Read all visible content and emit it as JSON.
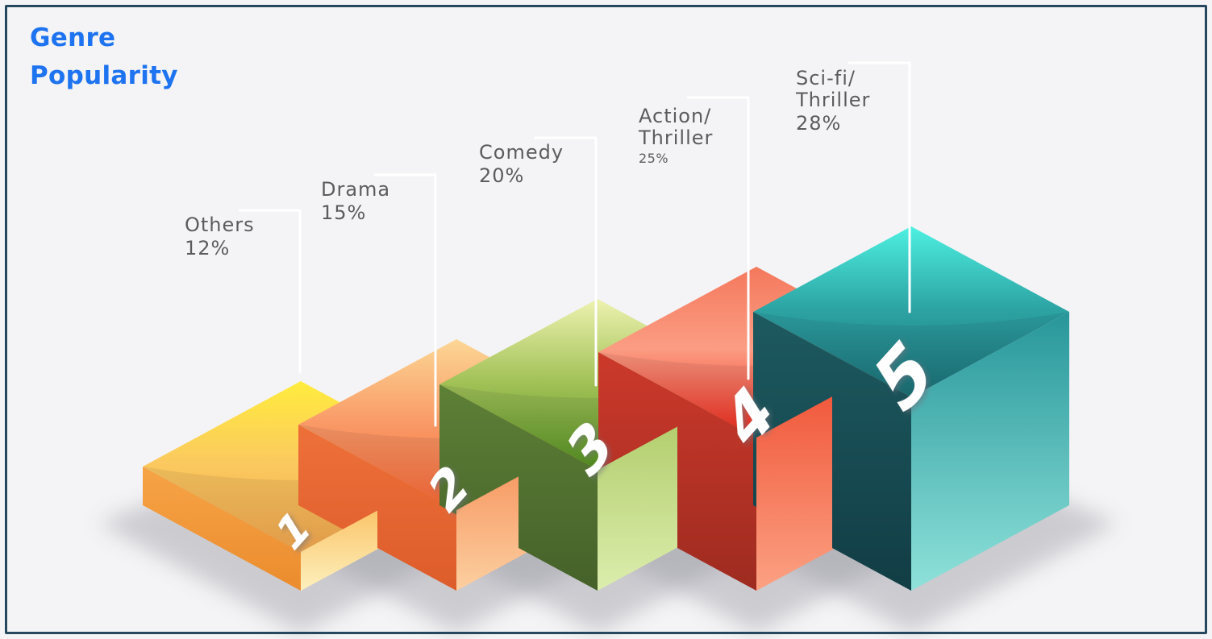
{
  "frame": {
    "border_color": "#25485e",
    "background": "#f4f4f6"
  },
  "title": {
    "line1": "Genre",
    "line2": "Popularity",
    "color": "#1e73f0"
  },
  "chart_data": {
    "type": "bar",
    "title": "Genre Popularity",
    "subtitle": "",
    "categories": [
      "Others",
      "Drama",
      "Comedy",
      "Action/Thriller",
      "Sci-fi/Thriller"
    ],
    "values": [
      12,
      15,
      20,
      25,
      28
    ],
    "unit": "%",
    "style": "isometric-3d-ranked-boxes",
    "legend": "none",
    "axes": "none",
    "callout_line_color": "#ffffff",
    "label_text_color": "#5c5b5f",
    "bars": [
      {
        "rank": "1",
        "label_lines": [
          "Others"
        ],
        "pct": "12%",
        "pct_small": false,
        "colors": {
          "top": [
            "#ffec3d",
            "#fbc95f",
            "#f3a74c"
          ],
          "left": [
            "#f6a446",
            "#eb8c2e"
          ],
          "right": [
            "#f9ae3e",
            "#fdf0bd"
          ]
        }
      },
      {
        "rank": "2",
        "label_lines": [
          "Drama"
        ],
        "pct": "15%",
        "pct_small": false,
        "colors": {
          "top": [
            "#fcd795",
            "#f99b68",
            "#fa6733"
          ],
          "left": [
            "#ee7039",
            "#dd5c2b"
          ],
          "right": [
            "#f5854d",
            "#fccfa0"
          ]
        }
      },
      {
        "rank": "3",
        "label_lines": [
          "Comedy"
        ],
        "pct": "20%",
        "pct_small": false,
        "colors": {
          "top": [
            "#edf2b0",
            "#a3c258",
            "#54911e"
          ],
          "left": [
            "#5d8036",
            "#45612a"
          ],
          "right": [
            "#a9c75f",
            "#dcedad"
          ]
        }
      },
      {
        "rank": "4",
        "label_lines": [
          "Action/",
          "Thriller"
        ],
        "pct": "25%",
        "pct_small": true,
        "colors": {
          "top": [
            "#f4785c",
            "#fb9d83",
            "#ef2516"
          ],
          "left": [
            "#cc392b",
            "#9e2b20"
          ],
          "right": [
            "#ee492c",
            "#fca183"
          ]
        }
      },
      {
        "rank": "5",
        "label_lines": [
          "Sci-fi/",
          "Thriller"
        ],
        "pct": "28%",
        "pct_small": false,
        "colors": {
          "top": [
            "#4df0e1",
            "#2da4a4",
            "#1a6e72"
          ],
          "left": [
            "#1d5a60",
            "#123d45"
          ],
          "right": [
            "#27969a",
            "#8fe2da"
          ]
        }
      }
    ]
  }
}
